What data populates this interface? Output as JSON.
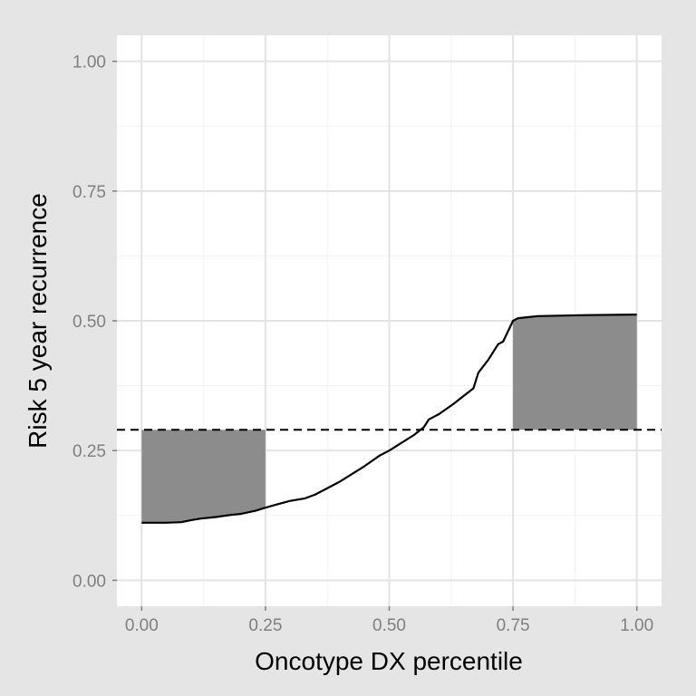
{
  "chart_data": {
    "type": "line",
    "title": "",
    "xlabel": "Oncotype DX percentile",
    "ylabel": "Risk 5 year recurrence",
    "xlim": [
      -0.05,
      1.05
    ],
    "ylim": [
      -0.05,
      1.05
    ],
    "x_ticks": [
      "0.00",
      "0.25",
      "0.50",
      "0.75",
      "1.00"
    ],
    "y_ticks": [
      "0.00",
      "0.25",
      "0.50",
      "0.75",
      "1.00"
    ],
    "grid": true,
    "series": [
      {
        "x": [
          0.0,
          0.05,
          0.08,
          0.1,
          0.12,
          0.15,
          0.18,
          0.2,
          0.23,
          0.25,
          0.28,
          0.3,
          0.33,
          0.35,
          0.37,
          0.4,
          0.42,
          0.45,
          0.48,
          0.5,
          0.52,
          0.55,
          0.57,
          0.58,
          0.6,
          0.63,
          0.65,
          0.67,
          0.68,
          0.7,
          0.71,
          0.72,
          0.73,
          0.74,
          0.75,
          0.76,
          0.8,
          0.9,
          1.0
        ],
        "y": [
          0.111,
          0.111,
          0.112,
          0.116,
          0.119,
          0.122,
          0.126,
          0.128,
          0.134,
          0.14,
          0.148,
          0.153,
          0.158,
          0.165,
          0.175,
          0.19,
          0.202,
          0.22,
          0.24,
          0.25,
          0.262,
          0.28,
          0.295,
          0.31,
          0.32,
          0.34,
          0.355,
          0.37,
          0.4,
          0.425,
          0.44,
          0.455,
          0.46,
          0.48,
          0.5,
          0.505,
          0.509,
          0.511,
          0.512
        ]
      }
    ],
    "reference_line": {
      "y": 0.29,
      "style": "dashed"
    },
    "shaded_regions": [
      {
        "x": [
          0.0,
          0.25
        ],
        "y_top": 0.29,
        "y_bottom": "curve"
      },
      {
        "x": [
          0.75,
          1.0
        ],
        "y_top": "curve",
        "y_bottom": 0.29
      }
    ],
    "colors": {
      "background": "#e5e5e5",
      "panel": "#ffffff",
      "shade": "#8c8c8c",
      "line": "#000000"
    }
  }
}
